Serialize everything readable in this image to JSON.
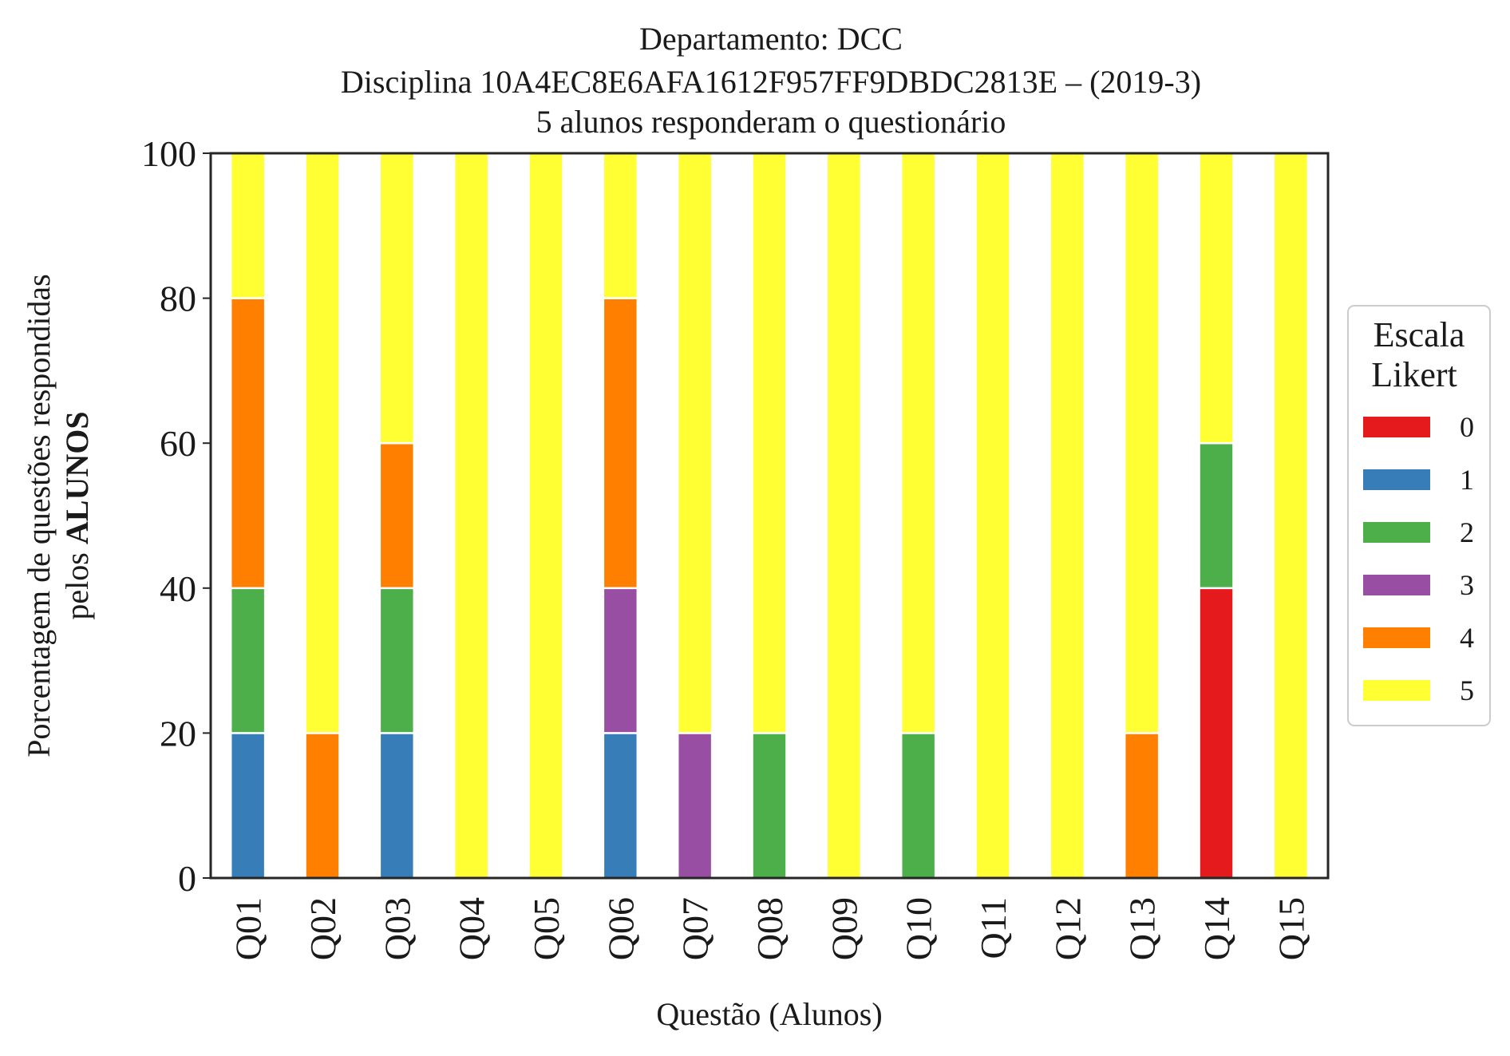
{
  "chart_data": {
    "type": "bar",
    "stacked": true,
    "title": [
      "Departamento: DCC",
      "Disciplina 10A4EC8E6AFA1612F957FF9DBDC2813E – (2019-3)",
      "5 alunos responderam o questionário"
    ],
    "xlabel": "Questão (Alunos)",
    "ylabel": "Porcentagem de questões respondidas",
    "ylabel_line2_prefix": "pelos ",
    "ylabel_line2_bold": "ALUNOS",
    "ylim": [
      0,
      100
    ],
    "yticks": [
      0,
      20,
      40,
      60,
      80,
      100
    ],
    "grid": false,
    "categories": [
      "Q01",
      "Q02",
      "Q03",
      "Q04",
      "Q05",
      "Q06",
      "Q07",
      "Q08",
      "Q09",
      "Q10",
      "Q11",
      "Q12",
      "Q13",
      "Q14",
      "Q15"
    ],
    "legend": {
      "title": [
        "Escala",
        "Likert"
      ],
      "placement": "right"
    },
    "series": [
      {
        "name": "0",
        "color": "#e41a1c",
        "values": [
          0,
          0,
          0,
          0,
          0,
          0,
          0,
          0,
          0,
          0,
          0,
          0,
          0,
          40,
          0
        ]
      },
      {
        "name": "1",
        "color": "#377eb8",
        "values": [
          20,
          0,
          20,
          0,
          0,
          20,
          0,
          0,
          0,
          0,
          0,
          0,
          0,
          0,
          0
        ]
      },
      {
        "name": "2",
        "color": "#4daf4a",
        "values": [
          20,
          0,
          20,
          0,
          0,
          0,
          0,
          20,
          0,
          20,
          0,
          0,
          0,
          20,
          0
        ]
      },
      {
        "name": "3",
        "color": "#984ea3",
        "values": [
          0,
          0,
          0,
          0,
          0,
          20,
          20,
          0,
          0,
          0,
          0,
          0,
          0,
          0,
          0
        ]
      },
      {
        "name": "4",
        "color": "#ff7f00",
        "values": [
          40,
          20,
          20,
          0,
          0,
          40,
          0,
          0,
          0,
          0,
          0,
          0,
          20,
          0,
          0
        ]
      },
      {
        "name": "5",
        "color": "#ffff33",
        "values": [
          20,
          80,
          40,
          100,
          100,
          20,
          80,
          80,
          100,
          80,
          100,
          100,
          80,
          40,
          100
        ]
      }
    ]
  }
}
